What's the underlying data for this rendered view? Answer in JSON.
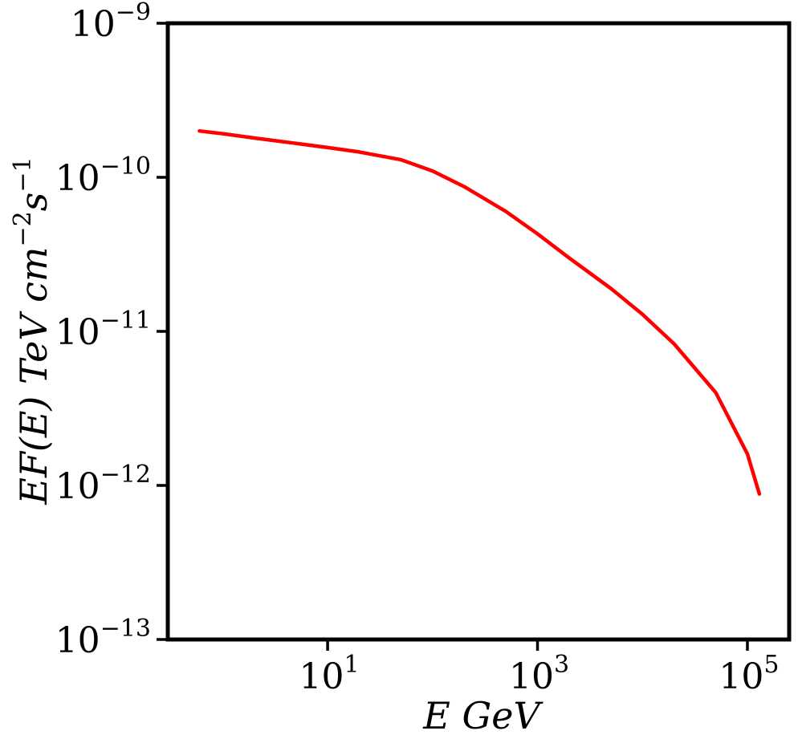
{
  "chart_data": {
    "type": "line",
    "title": "",
    "xlabel": "E GeV",
    "ylabel": "EF(E) TeV cm^-2 s^-1",
    "xlabel_parts": {
      "text": "E GeV"
    },
    "ylabel_parts": {
      "text1": "EF(E) TeV cm",
      "exp1": "−2",
      "text2": "s",
      "exp2": "−1"
    },
    "xscale": "log",
    "yscale": "log",
    "xlim": [
      0.3,
      250000
    ],
    "ylim": [
      1e-13,
      1e-09
    ],
    "x_ticks": [
      {
        "value": 10,
        "base": "10",
        "exp": "1"
      },
      {
        "value": 1000,
        "base": "10",
        "exp": "3"
      },
      {
        "value": 100000,
        "base": "10",
        "exp": "5"
      }
    ],
    "y_ticks": [
      {
        "value": 1e-09,
        "base": "10",
        "exp": "−9"
      },
      {
        "value": 1e-10,
        "base": "10",
        "exp": "−10"
      },
      {
        "value": 1e-11,
        "base": "10",
        "exp": "−11"
      },
      {
        "value": 1e-12,
        "base": "10",
        "exp": "−12"
      },
      {
        "value": 1e-13,
        "base": "10",
        "exp": "−13"
      }
    ],
    "grid": false,
    "series": [
      {
        "color": "#ff0000",
        "x": [
          0.6,
          1,
          2,
          5,
          10,
          20,
          50,
          100,
          200,
          500,
          1000,
          2000,
          5000,
          10000,
          20000,
          50000,
          100000,
          130000
        ],
        "y": [
          2e-10,
          1.92e-10,
          1.8e-10,
          1.66e-10,
          1.56e-10,
          1.46e-10,
          1.3e-10,
          1.1e-10,
          8.7e-11,
          6e-11,
          4.3e-11,
          3e-11,
          1.9e-11,
          1.29e-11,
          8.3e-12,
          4e-12,
          1.6e-12,
          8.8e-13
        ]
      }
    ]
  }
}
